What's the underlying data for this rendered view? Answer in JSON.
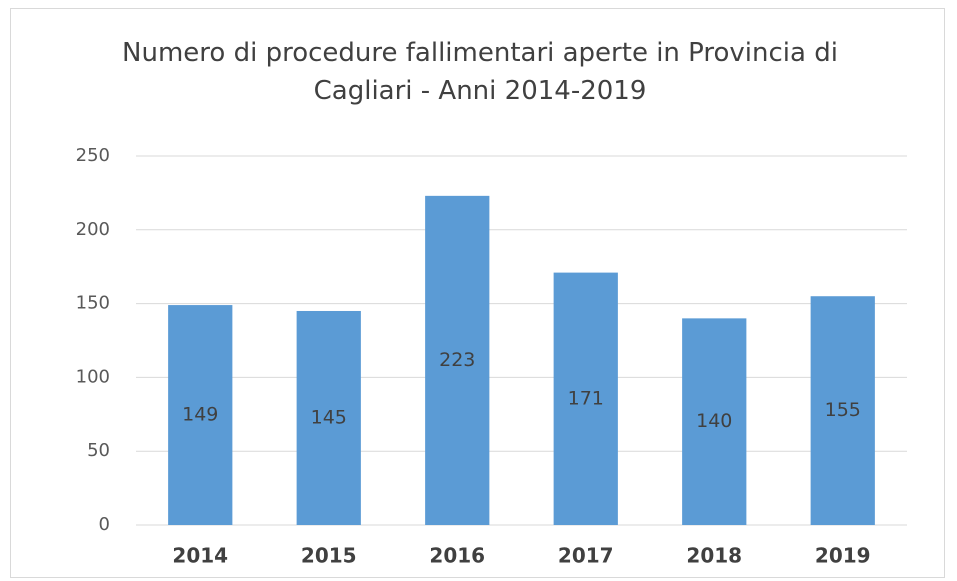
{
  "chart_data": {
    "type": "bar",
    "title": "Numero di procedure fallimentari aperte in Provincia di Cagliari - Anni 2014-2019",
    "categories": [
      "2014",
      "2015",
      "2016",
      "2017",
      "2018",
      "2019"
    ],
    "values": [
      149,
      145,
      223,
      171,
      140,
      155
    ],
    "color": "#5b9bd5",
    "ylim": [
      0,
      250
    ],
    "yticks": [
      0,
      50,
      100,
      150,
      200,
      250
    ],
    "grid": true
  }
}
